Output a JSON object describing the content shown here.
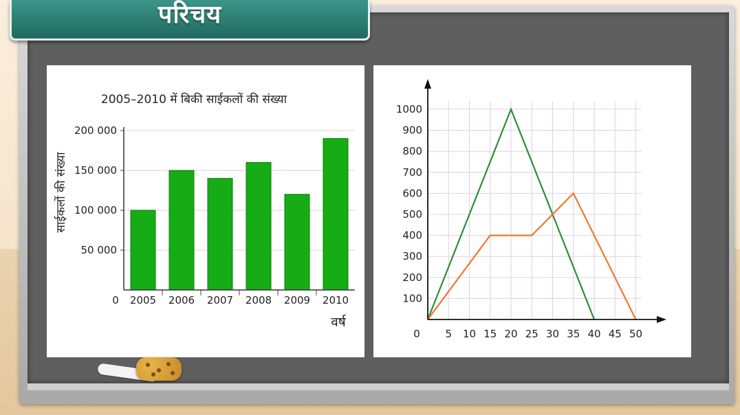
{
  "header": {
    "title": "परिचय"
  },
  "chart_data": [
    {
      "type": "bar",
      "title": "2005–2010 में बिकी साईकलों की संख्या",
      "xlabel": "वर्ष",
      "ylabel": "साईकलों की संख्या",
      "categories": [
        "2005",
        "2006",
        "2007",
        "2008",
        "2009",
        "2010"
      ],
      "values": [
        100000,
        150000,
        140000,
        160000,
        120000,
        190000
      ],
      "yticks": [
        50000,
        100000,
        150000,
        200000
      ],
      "ytick_labels": [
        "50 000",
        "100 000",
        "150 000",
        "200 000"
      ],
      "origin_label": "0",
      "ylim": [
        0,
        200000
      ],
      "grid": true,
      "colors": {
        "bar": "#16ac16",
        "bar_stroke": "#0b7d0b"
      }
    },
    {
      "type": "line",
      "title": "",
      "xlabel": "",
      "ylabel": "",
      "xticks": [
        5,
        10,
        15,
        20,
        25,
        30,
        35,
        40,
        45,
        50
      ],
      "yticks": [
        100,
        200,
        300,
        400,
        500,
        600,
        700,
        800,
        900,
        1000
      ],
      "origin_label": "0",
      "xlim": [
        0,
        50
      ],
      "ylim": [
        0,
        1000
      ],
      "grid": true,
      "series": [
        {
          "color": "#2b8f32",
          "x": [
            0,
            20,
            40
          ],
          "y": [
            0,
            1000,
            0
          ]
        },
        {
          "color": "#f0762e",
          "x": [
            0,
            15,
            25,
            35,
            50
          ],
          "y": [
            0,
            400,
            400,
            600,
            0
          ]
        }
      ]
    }
  ]
}
